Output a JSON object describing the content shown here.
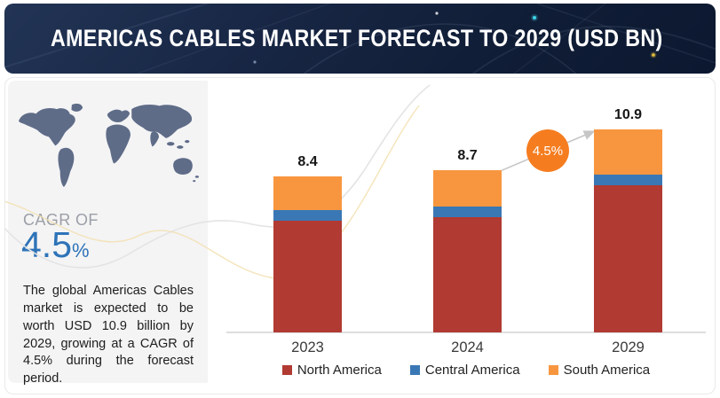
{
  "header": {
    "title": "AMERICAS CABLES MARKET FORECAST TO 2029 (USD BN)"
  },
  "sidebar": {
    "cagr_label": "CAGR OF",
    "cagr_value": "4.5",
    "cagr_unit": "%",
    "description": "The global Americas Cables market is expected to be worth USD 10.9 billion by 2029, growing at a CAGR of 4.5% during the forecast period."
  },
  "chart_data": {
    "type": "bar",
    "stacked": true,
    "title": "Americas Cables Market Forecast to 2029 (USD BN)",
    "unit": "USD BN",
    "categories": [
      "2023",
      "2024",
      "2029"
    ],
    "series": [
      {
        "name": "North America",
        "color": "#b13a32",
        "values": [
          6.0,
          6.2,
          7.9
        ]
      },
      {
        "name": "Central America",
        "color": "#3a78b5",
        "values": [
          0.55,
          0.55,
          0.6
        ]
      },
      {
        "name": "South America",
        "color": "#f8963f",
        "values": [
          1.85,
          1.95,
          2.4
        ]
      }
    ],
    "totals": [
      8.4,
      8.7,
      10.9
    ],
    "total_labels": [
      "8.4",
      "8.7",
      "10.9"
    ],
    "annotation": {
      "label": "4.5%",
      "type": "cagr-arrow",
      "from_category": "2024",
      "to_category": "2029",
      "circle_color": "#f57d20",
      "arrow_color": "#c6c6c6"
    },
    "legend": [
      "North America",
      "Central America",
      "South America"
    ],
    "legend_position": "bottom",
    "grid": false,
    "ylim": [
      0,
      11.5
    ]
  },
  "colors": {
    "header_bg": "#15223c",
    "sidebar_bg": "#f4f4f5",
    "map_fill": "#5f6c88",
    "cagr_blue": "#2e73b8",
    "axis_line": "#dedede"
  }
}
